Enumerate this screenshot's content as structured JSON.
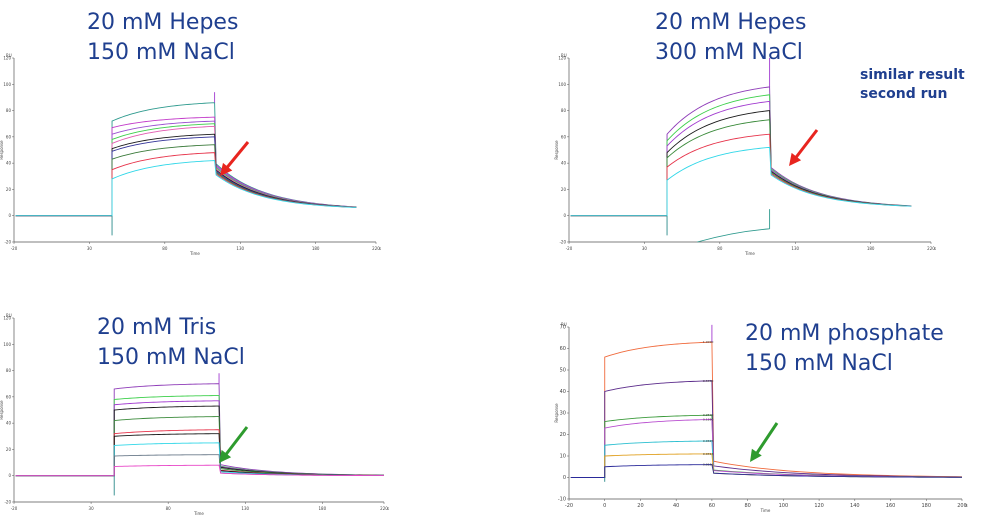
{
  "panels": [
    {
      "condition": [
        "20 mM Hepes",
        "150 mM NaCl"
      ],
      "note": [],
      "arrow_color": "#e8251f",
      "axis_unit": "RU",
      "xlabel": "Time",
      "ylabel": "Response",
      "x_end_label": "s",
      "xlim": [
        -20,
        220
      ],
      "ylim": [
        -20,
        120
      ],
      "xticks": [
        -20,
        30,
        80,
        130,
        180,
        220
      ],
      "yticks": [
        -20,
        0,
        20,
        40,
        60,
        80,
        100,
        120
      ],
      "association_start": 45,
      "dissociation_start": 113,
      "x_end": 207,
      "dissociation_endpoint": 5,
      "colors": [
        "#2e9a8e",
        "#c23ac9",
        "#9a4fd0",
        "#3ccf4a",
        "#e25bb0",
        "#1a1a1a",
        "#333399",
        "#3a7a3a",
        "#e6334a",
        "#30d7e8"
      ],
      "assoc_start_values": [
        72,
        67,
        62,
        58,
        55,
        51,
        49,
        43,
        35,
        28
      ],
      "assoc_end_values": [
        86,
        75,
        72,
        70,
        68,
        62,
        60,
        54,
        48,
        42
      ]
    },
    {
      "condition": [
        "20 mM Hepes",
        "300 mM NaCl"
      ],
      "note": [
        "similar result",
        "second run"
      ],
      "arrow_color": "#e8251f",
      "axis_unit": "RU",
      "xlabel": "Time",
      "ylabel": "Response",
      "x_end_label": "s",
      "xlim": [
        -20,
        220
      ],
      "ylim": [
        -20,
        120
      ],
      "xticks": [
        -20,
        30,
        80,
        130,
        180,
        220
      ],
      "yticks": [
        -20,
        0,
        20,
        40,
        60,
        80,
        100,
        120
      ],
      "association_start": 45,
      "dissociation_start": 113,
      "x_end": 207,
      "dissociation_endpoint": 6,
      "colors": [
        "#8e3bb8",
        "#3ccf4a",
        "#a23bd0",
        "#1a1a1a",
        "#3a8a3a",
        "#e6334a",
        "#30d7e8"
      ],
      "assoc_start_values": [
        62,
        57,
        53,
        48,
        44,
        37,
        27
      ],
      "assoc_end_values": [
        98,
        92,
        87,
        80,
        73,
        62,
        52
      ]
    },
    {
      "condition": [
        "20 mM Tris",
        "150 mM NaCl"
      ],
      "note": [],
      "arrow_color": "#2e9b2e",
      "axis_unit": "RU",
      "xlabel": "Time",
      "ylabel": "Response",
      "x_end_label": "s",
      "xlim": [
        -20,
        220
      ],
      "ylim": [
        -20,
        120
      ],
      "xticks": [
        -20,
        30,
        80,
        130,
        180,
        220
      ],
      "yticks": [
        -20,
        0,
        20,
        40,
        60,
        80,
        100,
        120
      ],
      "association_start": 45,
      "dissociation_start": 113,
      "x_end": 220,
      "dissociation_endpoint": 0,
      "colors": [
        "#8e3bb8",
        "#3ccf4a",
        "#a23bd0",
        "#1a1a1a",
        "#3a8a3a",
        "#e6334a",
        "#1a1a1a",
        "#30d7e8",
        "#6a7a8a",
        "#e845c7"
      ],
      "assoc_start_values": [
        66,
        58,
        54,
        50,
        42,
        32,
        30,
        23,
        15,
        7
      ],
      "assoc_end_values": [
        70,
        61,
        57,
        53,
        45,
        35,
        32,
        25,
        16,
        8
      ]
    },
    {
      "condition": [
        "20 mM phosphate",
        "150 mM NaCl"
      ],
      "note": [],
      "arrow_color": "#2e9b2e",
      "axis_unit": "RU",
      "xlabel": "Time",
      "ylabel": "Response",
      "x_end_label": "s",
      "xlim": [
        -20,
        200
      ],
      "ylim": [
        -10,
        70
      ],
      "xticks": [
        -20,
        0,
        20,
        40,
        60,
        80,
        100,
        120,
        140,
        160,
        180,
        200
      ],
      "yticks": [
        -10,
        0,
        10,
        20,
        30,
        40,
        50,
        60,
        70
      ],
      "association_start": 0,
      "dissociation_start": 60,
      "x_end": 200,
      "dissociation_endpoint": 0,
      "colors": [
        "#f06a3c",
        "#5a2a8a",
        "#3a9a3a",
        "#b94fd0",
        "#2bbfd0",
        "#e0a020",
        "#2a2a9a"
      ],
      "assoc_start_values": [
        56,
        40,
        26,
        23,
        15,
        10,
        5
      ],
      "assoc_end_values": [
        63,
        45,
        29,
        27,
        17,
        11,
        6
      ],
      "conc_labels": [
        "1.0000",
        "0.5000",
        "0.2500",
        "0.1250",
        "0.0625",
        "0.0313",
        "0.0156"
      ]
    }
  ]
}
